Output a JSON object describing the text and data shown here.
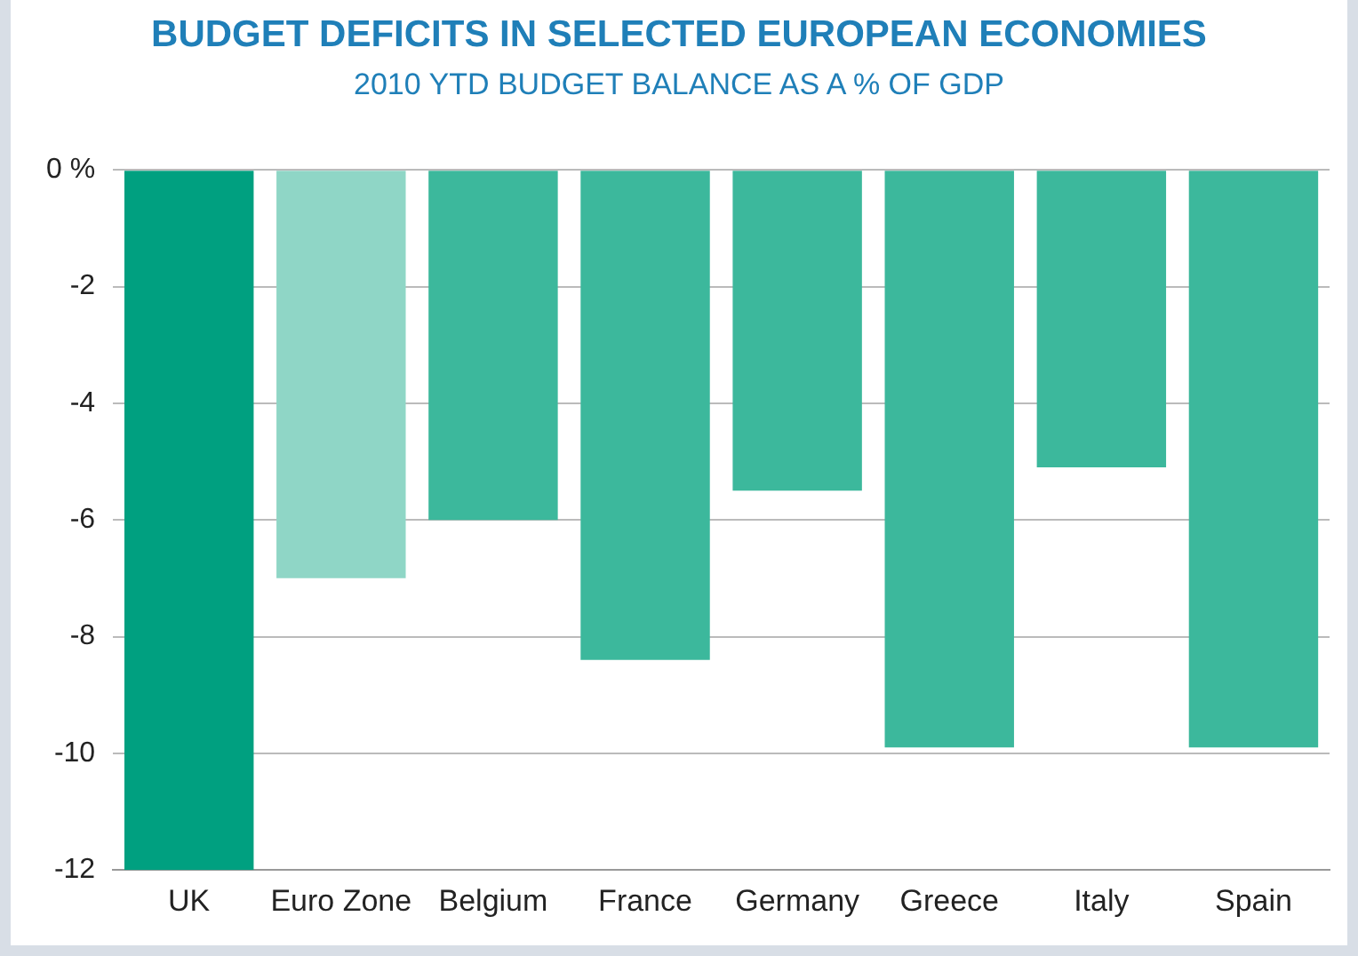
{
  "chart_data": {
    "type": "bar",
    "title": "BUDGET DEFICITS IN SELECTED EUROPEAN ECONOMIES",
    "subtitle": "2010 YTD BUDGET BALANCE AS A % OF GDP",
    "categories": [
      "UK",
      "Euro Zone",
      "Belgium",
      "France",
      "Germany",
      "Greece",
      "Italy",
      "Spain"
    ],
    "values": [
      -12,
      -7,
      -6,
      -8.4,
      -5.5,
      -9.9,
      -5.1,
      -9.9
    ],
    "colors": [
      "#00a080",
      "#8fd6c6",
      "#3cb89c",
      "#3cb89c",
      "#3cb89c",
      "#3cb89c",
      "#3cb89c",
      "#3cb89c"
    ],
    "ylim": [
      -12,
      0
    ],
    "yticks": [
      {
        "value": 0,
        "label": "0 %"
      },
      -2,
      -4,
      -6,
      -8,
      -10,
      -12
    ],
    "grid": "y",
    "legend": false
  }
}
